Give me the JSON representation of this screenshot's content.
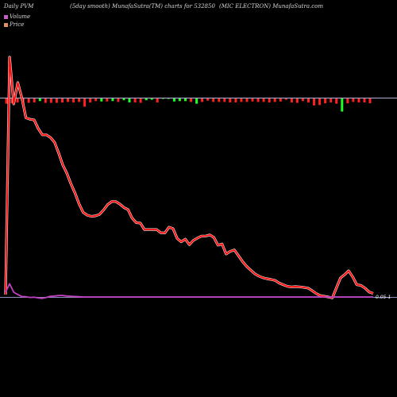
{
  "header": {
    "left": "Daily PVM",
    "middle": "(5day smooth) MunafaSutra(TM) charts for 532850",
    "right": "(MIC ELECTRON) MunafaSutra.com"
  },
  "legend": {
    "volume_label": "Volume",
    "price_label": "Price",
    "volume_color": "#c060c0",
    "price_color": "#e09060"
  },
  "chart_data": {
    "type": "line",
    "last_value_label": "0.05-1",
    "colors": {
      "price_line": "#ff1010",
      "price_glow": "#ffffff",
      "volume_line": "#c040c0",
      "baseline": "#9090c0",
      "bar_up": "#20ff20",
      "bar_down": "#ff2020"
    },
    "price": [
      0.01,
      1.0,
      0.805,
      0.894,
      0.829,
      0.747,
      0.741,
      0.738,
      0.702,
      0.676,
      0.676,
      0.665,
      0.645,
      0.6,
      0.551,
      0.516,
      0.472,
      0.433,
      0.388,
      0.353,
      0.341,
      0.336,
      0.338,
      0.344,
      0.363,
      0.385,
      0.398,
      0.398,
      0.387,
      0.373,
      0.364,
      0.328,
      0.31,
      0.308,
      0.281,
      0.281,
      0.281,
      0.281,
      0.268,
      0.267,
      0.291,
      0.285,
      0.244,
      0.23,
      0.241,
      0.218,
      0.236,
      0.246,
      0.254,
      0.254,
      0.259,
      0.248,
      0.216,
      0.221,
      0.179,
      0.19,
      0.196,
      0.173,
      0.148,
      0.128,
      0.112,
      0.097,
      0.087,
      0.08,
      0.076,
      0.073,
      0.069,
      0.058,
      0.051,
      0.044,
      0.042,
      0.043,
      0.042,
      0.04,
      0.037,
      0.027,
      0.015,
      0.006,
      0.003,
      0.0,
      -0.004,
      0.038,
      0.079,
      0.093,
      0.109,
      0.083,
      0.051,
      0.048,
      0.037,
      0.021,
      0.015
    ],
    "volume": [
      0.02,
      0.055,
      0.02,
      0.01,
      0.002,
      0.001,
      -0.002,
      -0.001,
      -0.004,
      -0.006,
      -0.002,
      0.003,
      0.004,
      0.006,
      0.006,
      0.004,
      0.003,
      0.002,
      0.001,
      0.0,
      0.0,
      0.0,
      0.0,
      0.0,
      0.0,
      0.0,
      0.0,
      0.0,
      0.0,
      0.0,
      0.0,
      0.0,
      0.0,
      0.0,
      0.0,
      0.0,
      0.0,
      0.0,
      0.0,
      0.0,
      0.0,
      0.0,
      0.0,
      0.0,
      0.0,
      0.0,
      0.0,
      0.0,
      0.0,
      0.0,
      0.0,
      0.0,
      0.0,
      0.0,
      0.0,
      0.0,
      0.0,
      0.0,
      0.0,
      0.0,
      0.0,
      0.0,
      0.0,
      0.0,
      0.0,
      0.0,
      0.0,
      0.0,
      0.0,
      0.0,
      0.0,
      0.0,
      0.0,
      0.0,
      0.0,
      0.0,
      0.0,
      0.0,
      0.0,
      0.0,
      0.0,
      0.0,
      0.0,
      0.0,
      0.0,
      0.0,
      0.0,
      0.0,
      0.0,
      0.0,
      0.0
    ],
    "pvm_bars": [
      {
        "v": 0.6,
        "c": "down"
      },
      {
        "v": 0.55,
        "c": "down"
      },
      {
        "v": 0.45,
        "c": "down"
      },
      {
        "v": 0.65,
        "c": "down"
      },
      {
        "v": 0.5,
        "c": "down"
      },
      {
        "v": 0.45,
        "c": "down"
      },
      {
        "v": 0.3,
        "c": "up"
      },
      {
        "v": 0.5,
        "c": "down"
      },
      {
        "v": 0.5,
        "c": "down"
      },
      {
        "v": 0.5,
        "c": "down"
      },
      {
        "v": 0.45,
        "c": "down"
      },
      {
        "v": 0.4,
        "c": "down"
      },
      {
        "v": 0.45,
        "c": "down"
      },
      {
        "v": 0.4,
        "c": "down"
      },
      {
        "v": 0.95,
        "c": "down"
      },
      {
        "v": 0.45,
        "c": "down"
      },
      {
        "v": 0.3,
        "c": "down"
      },
      {
        "v": 0.35,
        "c": "up"
      },
      {
        "v": 0.35,
        "c": "down"
      },
      {
        "v": 0.3,
        "c": "up"
      },
      {
        "v": 0.4,
        "c": "down"
      },
      {
        "v": 0.2,
        "c": "up"
      },
      {
        "v": 0.45,
        "c": "up"
      },
      {
        "v": 0.45,
        "c": "down"
      },
      {
        "v": 0.5,
        "c": "down"
      },
      {
        "v": 0.2,
        "c": "up"
      },
      {
        "v": 0.15,
        "c": "up"
      },
      {
        "v": 0.45,
        "c": "down"
      },
      {
        "v": 0.05,
        "c": "up"
      },
      {
        "v": 0.05,
        "c": "up"
      },
      {
        "v": 0.35,
        "c": "up"
      },
      {
        "v": 0.3,
        "c": "up"
      },
      {
        "v": 0.3,
        "c": "up"
      },
      {
        "v": 0.4,
        "c": "down"
      },
      {
        "v": 0.6,
        "c": "up"
      },
      {
        "v": 0.4,
        "c": "down"
      },
      {
        "v": 0.25,
        "c": "down"
      },
      {
        "v": 0.4,
        "c": "down"
      },
      {
        "v": 0.4,
        "c": "down"
      },
      {
        "v": 0.4,
        "c": "down"
      },
      {
        "v": 0.45,
        "c": "down"
      },
      {
        "v": 0.45,
        "c": "down"
      },
      {
        "v": 0.4,
        "c": "down"
      },
      {
        "v": 0.4,
        "c": "down"
      },
      {
        "v": 0.35,
        "c": "down"
      },
      {
        "v": 0.4,
        "c": "down"
      },
      {
        "v": 0.4,
        "c": "down"
      },
      {
        "v": 0.45,
        "c": "down"
      },
      {
        "v": 0.4,
        "c": "down"
      },
      {
        "v": 0.35,
        "c": "down"
      },
      {
        "v": 0.15,
        "c": "down"
      },
      {
        "v": 0.45,
        "c": "down"
      },
      {
        "v": 0.5,
        "c": "down"
      },
      {
        "v": 0.3,
        "c": "down"
      },
      {
        "v": 0.45,
        "c": "down"
      },
      {
        "v": 0.8,
        "c": "down"
      },
      {
        "v": 0.75,
        "c": "down"
      },
      {
        "v": 0.55,
        "c": "down"
      },
      {
        "v": 0.45,
        "c": "down"
      },
      {
        "v": 0.6,
        "c": "down"
      },
      {
        "v": 1.5,
        "c": "up"
      },
      {
        "v": 0.55,
        "c": "down"
      },
      {
        "v": 0.4,
        "c": "down"
      },
      {
        "v": 0.45,
        "c": "down"
      },
      {
        "v": 0.45,
        "c": "down"
      },
      {
        "v": 0.55,
        "c": "down"
      }
    ]
  }
}
